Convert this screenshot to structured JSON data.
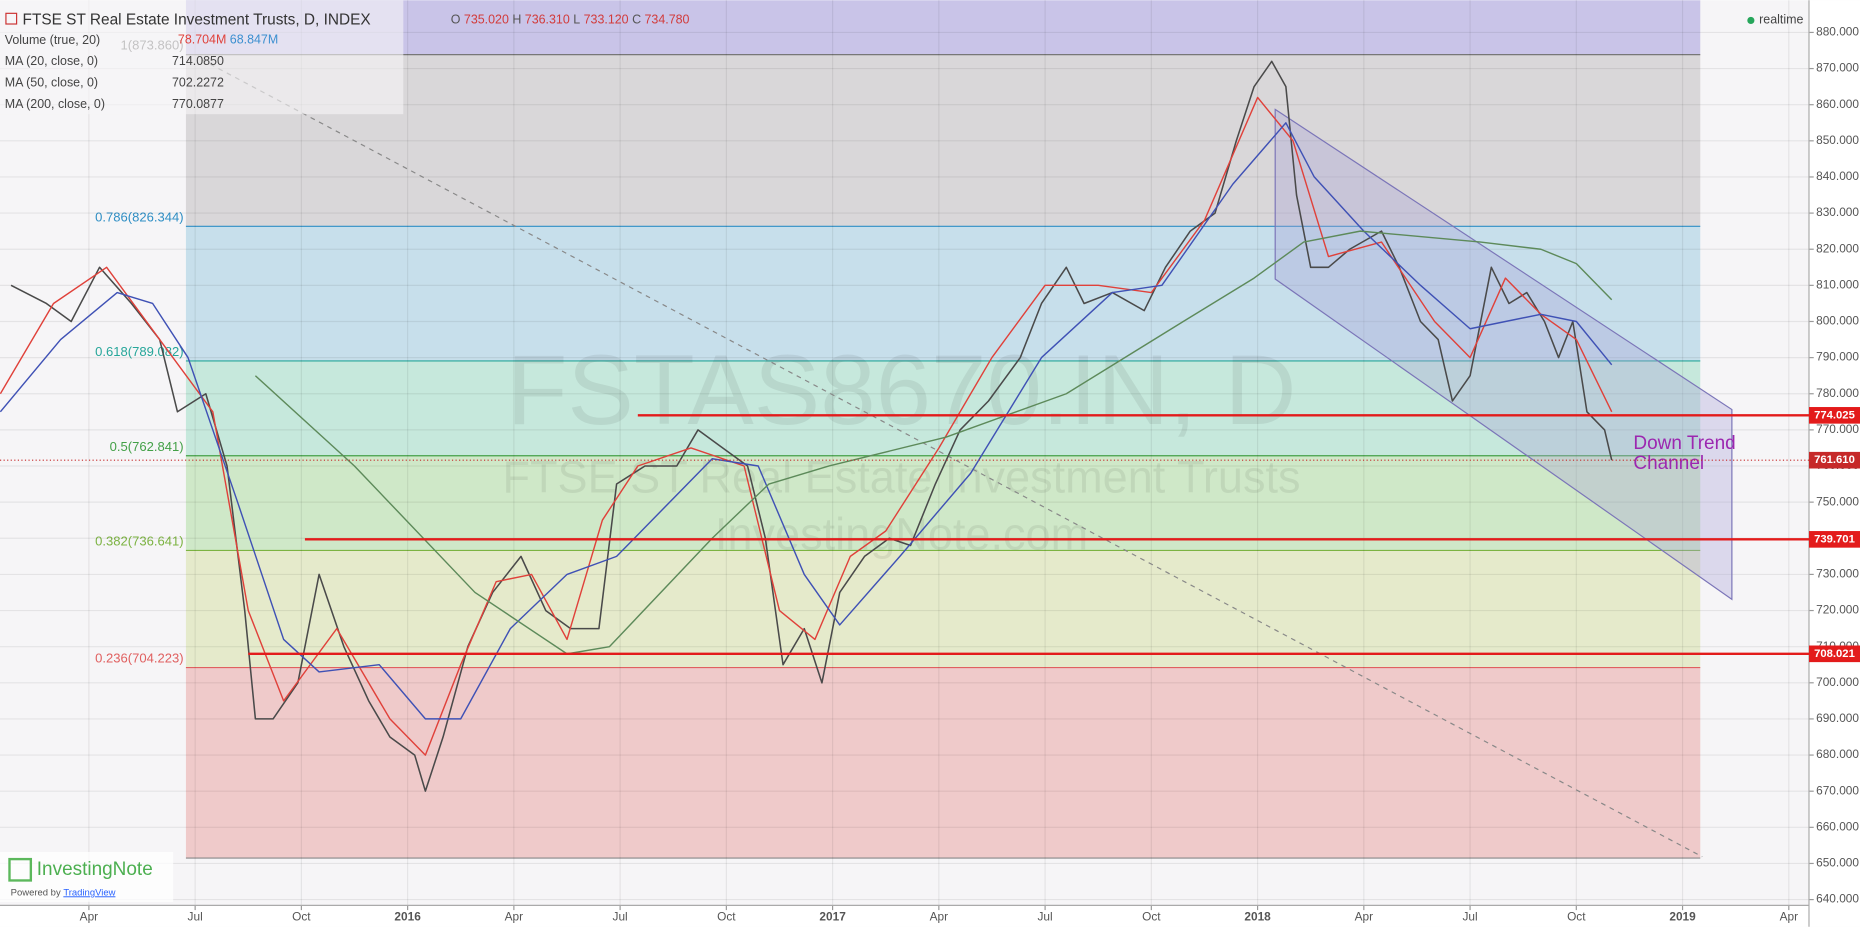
{
  "chart_data": {
    "type": "line",
    "title": "FTSE ST Real Estate Investment Trusts, D, INDEX",
    "ohlc": [
      {
        "key": "O",
        "value": "735.020"
      },
      {
        "key": "H",
        "value": "736.310"
      },
      {
        "key": "L",
        "value": "733.120"
      },
      {
        "key": "C",
        "value": "734.780"
      }
    ],
    "status": "realtime",
    "volume": {
      "name": "Volume (true, 20)",
      "readings": [
        "78.704M",
        "68.847M"
      ],
      "colors": [
        "#e0413a",
        "#3b8fd0"
      ]
    },
    "series": [
      {
        "color": "#4a4a4a",
        "x": [
          0.8,
          1.8,
          2.5,
          3.3,
          4.2,
          5.0,
          5.5,
          6.3,
          6.9,
          7.4,
          7.7,
          8.2,
          8.9,
          9.5,
          10.2,
          10.9,
          11.5,
          12.2,
          12.5,
          13.0,
          13.7,
          14.4,
          15.2,
          15.9,
          16.6,
          17.4,
          17.9,
          18.7,
          19.6,
          20.2,
          20.9,
          21.6,
          22.1,
          22.6,
          23.2,
          23.7,
          24.2,
          24.9,
          25.6,
          26.2,
          26.9,
          27.6,
          28.4,
          29.3,
          29.9,
          30.6,
          31.1,
          31.9,
          32.8,
          33.4,
          34.1,
          34.8,
          35.4,
          35.9,
          36.4,
          36.8,
          37.1,
          37.5,
          38.0,
          38.6,
          39.5,
          40.0,
          40.6,
          41.1,
          41.5,
          42.0,
          42.6,
          43.1,
          43.6,
          44.1,
          44.5,
          44.9,
          45.3,
          45.8,
          46.0
        ],
        "values": [
          810,
          805,
          800,
          815,
          805,
          795,
          775,
          780,
          760,
          720,
          690,
          690,
          700,
          730,
          710,
          695,
          685,
          680,
          670,
          685,
          710,
          725,
          735,
          720,
          715,
          715,
          755,
          760,
          760,
          770,
          765,
          760,
          740,
          705,
          715,
          700,
          725,
          735,
          740,
          738,
          755,
          770,
          778,
          790,
          805,
          815,
          805,
          808,
          803,
          815,
          825,
          830,
          850,
          865,
          872,
          865,
          835,
          815,
          815,
          820,
          825,
          815,
          800,
          795,
          778,
          785,
          815,
          805,
          808,
          800,
          790,
          800,
          775,
          770,
          761.61
        ]
      },
      {
        "name": "MA (20, close, 0)",
        "readings": [
          "714.0850"
        ],
        "color": "#e0413a",
        "x": [
          0.5,
          2.0,
          3.5,
          5.0,
          6.5,
          7.5,
          8.5,
          10.0,
          11.5,
          12.5,
          13.5,
          14.5,
          15.5,
          16.5,
          17.5,
          18.5,
          20.0,
          21.5,
          22.5,
          23.5,
          24.5,
          25.5,
          27.0,
          28.5,
          30.0,
          31.5,
          33.0,
          34.5,
          36.0,
          37.0,
          38.0,
          39.5,
          41.0,
          42.0,
          43.0,
          44.0,
          45.0,
          46.0
        ],
        "values": [
          780,
          805,
          815,
          795,
          775,
          720,
          695,
          715,
          690,
          680,
          705,
          728,
          730,
          712,
          745,
          760,
          765,
          760,
          720,
          712,
          735,
          742,
          765,
          790,
          810,
          810,
          808,
          828,
          862,
          850,
          818,
          822,
          800,
          790,
          812,
          802,
          795,
          775
        ]
      },
      {
        "name": "MA (50, close, 0)",
        "readings": [
          "702.2272"
        ],
        "color": "#3f51b5",
        "x": [
          0.5,
          2.2,
          3.8,
          4.8,
          5.8,
          7.2,
          8.5,
          9.5,
          11.2,
          12.5,
          13.5,
          14.9,
          16.5,
          17.9,
          19.2,
          20.6,
          21.9,
          23.2,
          24.2,
          25.9,
          27.9,
          29.9,
          31.9,
          33.3,
          35.3,
          36.8,
          37.6,
          39.0,
          40.6,
          42.0,
          43.0,
          44.0,
          45.0,
          46.0
        ],
        "values": [
          775,
          795,
          808,
          805,
          790,
          750,
          712,
          703,
          705,
          690,
          690,
          715,
          730,
          735,
          748,
          762,
          760,
          730,
          716,
          735,
          758,
          790,
          808,
          810,
          838,
          855,
          840,
          825,
          810,
          798,
          800,
          802,
          800,
          788
        ]
      },
      {
        "name": "MA (200, close, 0)",
        "readings": [
          "770.0877"
        ],
        "color": "#5d8a5a",
        "x": [
          7.7,
          10.5,
          13.9,
          16.5,
          17.7,
          20.6,
          22.2,
          23.9,
          27.2,
          30.6,
          33.9,
          35.9,
          37.3,
          38.9,
          42.3,
          44.0,
          45.0,
          46.0
        ],
        "values": [
          785,
          760,
          725,
          708,
          710,
          740,
          755,
          760,
          768,
          780,
          800,
          812,
          822,
          825,
          822,
          820,
          816,
          806
        ]
      }
    ],
    "xlim": [
      0.49,
      51.57
    ],
    "xticks": [
      {
        "value": 3,
        "label": "Apr"
      },
      {
        "value": 6,
        "label": "Jul"
      },
      {
        "value": 9,
        "label": "Oct"
      },
      {
        "value": 12,
        "label": "2016"
      },
      {
        "value": 15,
        "label": "Apr"
      },
      {
        "value": 18,
        "label": "Jul"
      },
      {
        "value": 21,
        "label": "Oct"
      },
      {
        "value": 24,
        "label": "2017"
      },
      {
        "value": 27,
        "label": "Apr"
      },
      {
        "value": 30,
        "label": "Jul"
      },
      {
        "value": 33,
        "label": "Oct"
      },
      {
        "value": 36,
        "label": "2018"
      },
      {
        "value": 39,
        "label": "Apr"
      },
      {
        "value": 42,
        "label": "Jul"
      },
      {
        "value": 45,
        "label": "Oct"
      },
      {
        "value": 48,
        "label": "2019"
      },
      {
        "value": 51,
        "label": "Apr"
      }
    ],
    "ylim": [
      638.4,
      888.9
    ],
    "yticks": [
      {
        "value": 640,
        "label": "640.000"
      },
      {
        "value": 650,
        "label": "650.000"
      },
      {
        "value": 660,
        "label": "660.000"
      },
      {
        "value": 670,
        "label": "670.000"
      },
      {
        "value": 680,
        "label": "680.000"
      },
      {
        "value": 690,
        "label": "690.000"
      },
      {
        "value": 700,
        "label": "700.000"
      },
      {
        "value": 710,
        "label": "710.000"
      },
      {
        "value": 720,
        "label": "720.000"
      },
      {
        "value": 730,
        "label": "730.000"
      },
      {
        "value": 740,
        "label": "740.000"
      },
      {
        "value": 750,
        "label": "750.000"
      },
      {
        "value": 760,
        "label": "760.000"
      },
      {
        "value": 770,
        "label": "770.000"
      },
      {
        "value": 780,
        "label": "780.000"
      },
      {
        "value": 790,
        "label": "790.000"
      },
      {
        "value": 800,
        "label": "800.000"
      },
      {
        "value": 810,
        "label": "810.000"
      },
      {
        "value": 820,
        "label": "820.000"
      },
      {
        "value": 830,
        "label": "830.000"
      },
      {
        "value": 840,
        "label": "840.000"
      },
      {
        "value": 850,
        "label": "850.000"
      },
      {
        "value": 860,
        "label": "860.000"
      },
      {
        "value": 870,
        "label": "870.000"
      },
      {
        "value": 880,
        "label": "880.000"
      }
    ],
    "grid": true,
    "fib_x": [
      5.74,
      48.5
    ],
    "fib_top_color": "#c9c4e8",
    "fib_levels": [
      {
        "value": 873.86,
        "label": "1(873.860)",
        "color": "#777777",
        "band": "#d9d7d9"
      },
      {
        "value": 826.344,
        "label": "0.786(826.344)",
        "color": "#2f8fc5",
        "band": "#c7dfeb"
      },
      {
        "value": 789.082,
        "label": "0.618(789.082)",
        "color": "#26a69a",
        "band": "#c6e8dc"
      },
      {
        "value": 762.841,
        "label": "0.5(762.841)",
        "color": "#43a047",
        "band": "#cfe8c8"
      },
      {
        "value": 736.641,
        "label": "0.382(736.641)",
        "color": "#7cb342",
        "band": "#e5eacb"
      },
      {
        "value": 704.223,
        "label": "0.236(704.223)",
        "color": "#e06060",
        "band": "#efcaca"
      },
      {
        "value": 651.5,
        "label": null,
        "color": "#888888",
        "band": null
      }
    ],
    "levels": [
      {
        "value": 774.025,
        "label": "774.025",
        "start": 18.5,
        "color": "#e31b1b"
      },
      {
        "value": 739.701,
        "label": "739.701",
        "start": 9.1,
        "color": "#e31b1b"
      },
      {
        "value": 708.021,
        "label": "708.021",
        "start": 7.5,
        "color": "#e31b1b"
      }
    ],
    "last_price": {
      "value": 761.61,
      "label": "761.610",
      "color": "#c62828"
    },
    "annotation": [
      "Down Trend",
      "Channel"
    ],
    "watermark": [
      "FSTAS8670.IN, D",
      "FTSE ST Real Estate Investment Trusts",
      "InvestingNote.com"
    ],
    "branding": {
      "name": "InvestingNote",
      "powered": "Powered by",
      "link": "TradingView"
    }
  }
}
